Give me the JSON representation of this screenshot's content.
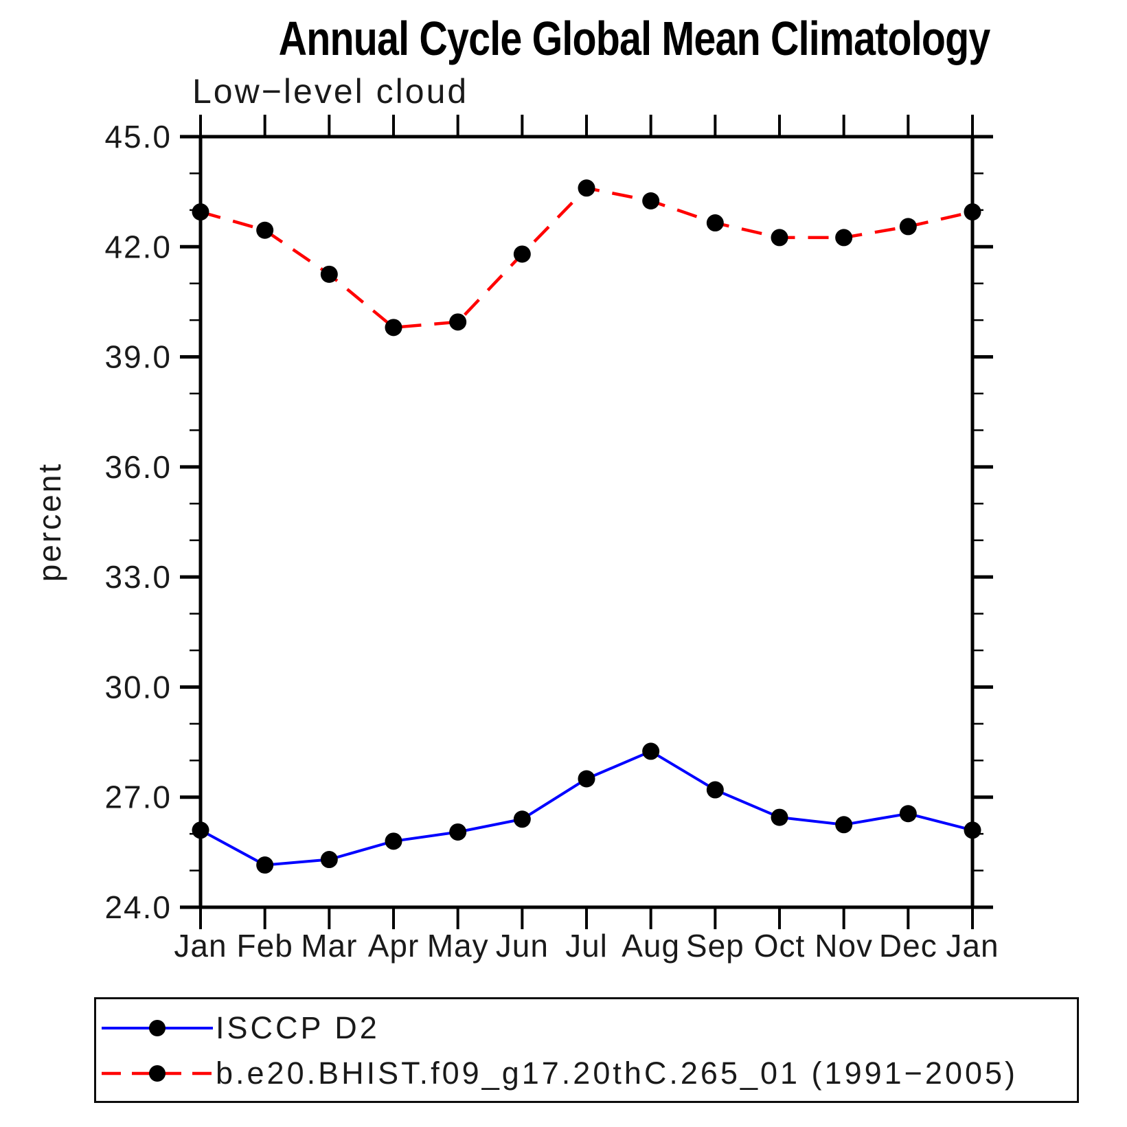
{
  "chart_data": {
    "type": "line",
    "title": "Annual Cycle Global Mean Climatology",
    "subtitle": "Low−level cloud",
    "ylabel": "percent",
    "x_categories": [
      "Jan",
      "Feb",
      "Mar",
      "Apr",
      "May",
      "Jun",
      "Jul",
      "Aug",
      "Sep",
      "Oct",
      "Nov",
      "Dec",
      "Jan"
    ],
    "ylim": [
      24.0,
      45.0
    ],
    "ytick_major_step": 3.0,
    "ytick_minor_step": 1.0,
    "grid": false,
    "legend_position": "bottom",
    "marker_color": "#000000",
    "series": [
      {
        "name": "ISCCP D2",
        "color": "#0000ff",
        "style": "solid",
        "marker": "black-dot",
        "values": [
          26.1,
          25.15,
          25.3,
          25.8,
          26.05,
          26.4,
          27.5,
          28.25,
          27.2,
          26.45,
          26.25,
          26.55,
          26.1
        ]
      },
      {
        "name": "b.e20.BHIST.f09_g17.20thC.265_01 (1991−2005)",
        "color": "#ff0000",
        "style": "dashed",
        "marker": "black-dot",
        "values": [
          42.95,
          42.45,
          41.25,
          39.8,
          39.95,
          41.8,
          43.6,
          43.25,
          42.65,
          42.25,
          42.25,
          42.55,
          42.95
        ]
      }
    ]
  }
}
